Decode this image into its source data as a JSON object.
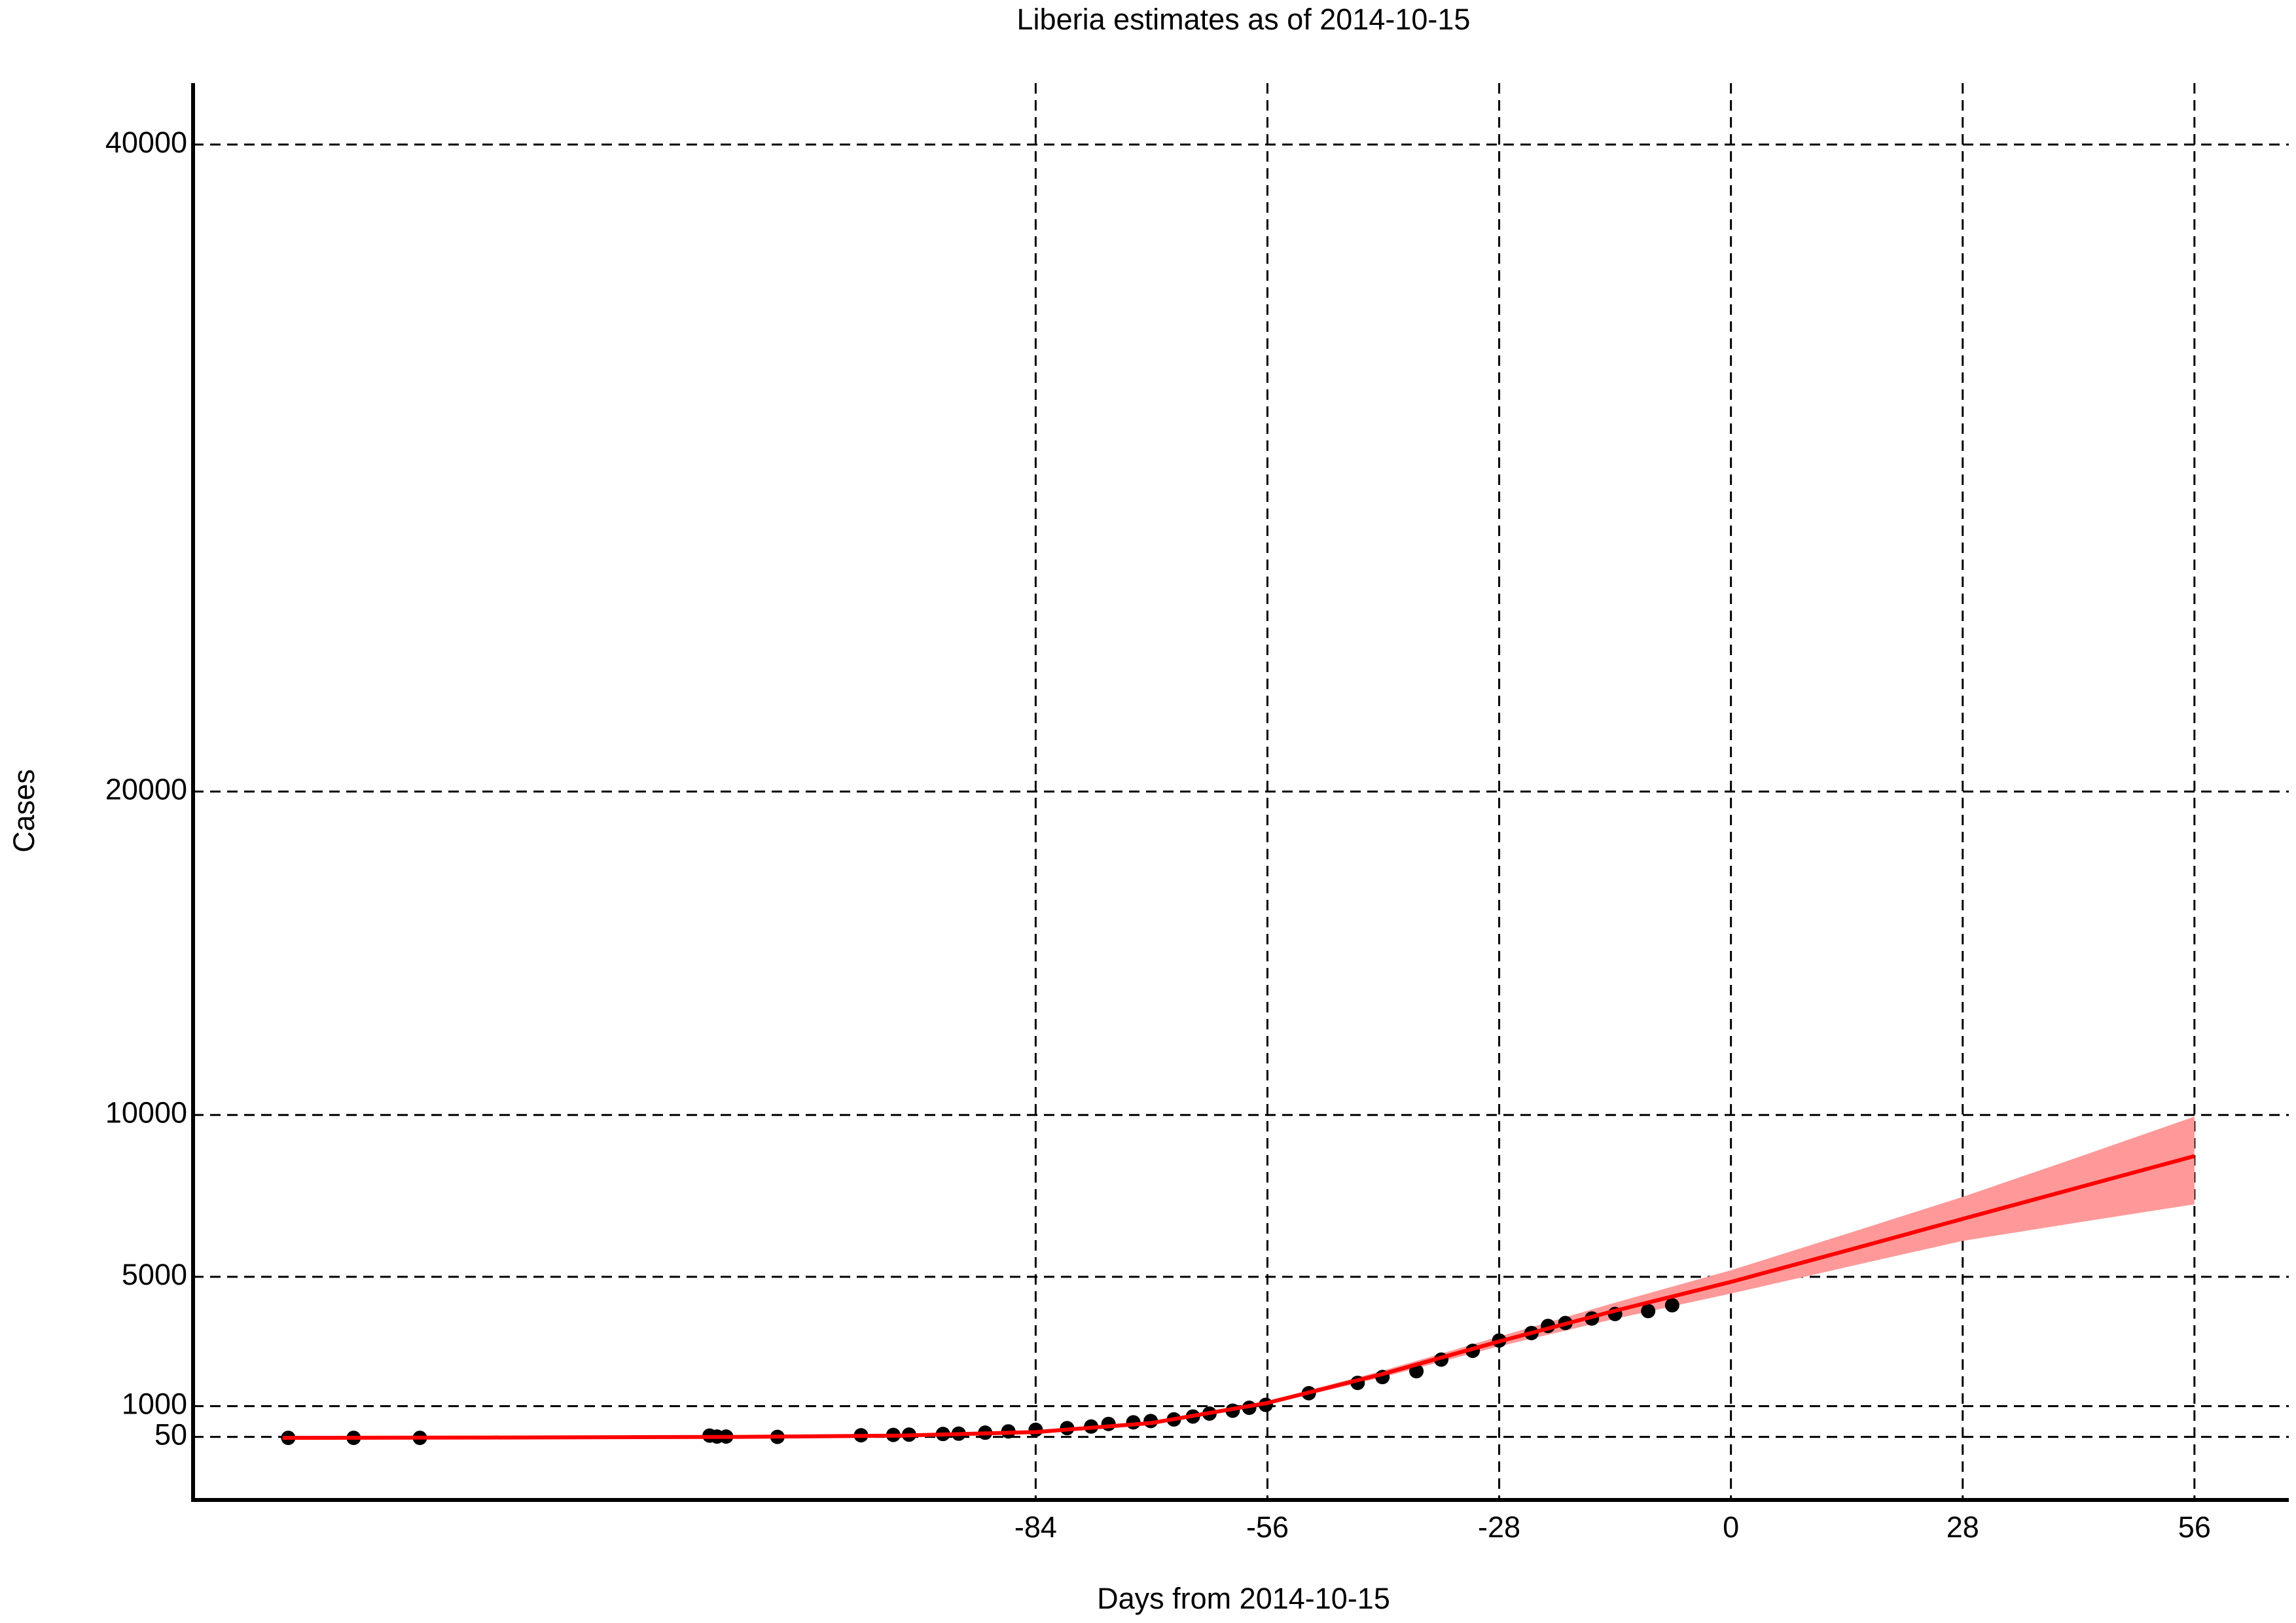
{
  "chart_data": {
    "type": "line",
    "title": "Liberia estimates as of 2014-10-15",
    "xlabel": "Days from 2014-10-15",
    "ylabel": "Cases",
    "xlim": [
      -185.8,
      67.4
    ],
    "ylim": [
      -1900,
      41900
    ],
    "xticks": [
      -84,
      -56,
      -28,
      0,
      28,
      56
    ],
    "yticks": [
      50,
      1000,
      5000,
      10000,
      20000,
      40000
    ],
    "grid": true,
    "points": {
      "color": "#000000",
      "x": [
        -174.3,
        -166.4,
        -158.4,
        -123.4,
        -122.5,
        -121.4,
        -115.2,
        -105.1,
        -101.2,
        -99.3,
        -95.2,
        -93.3,
        -90.1,
        -87.3,
        -84,
        -80.2,
        -77.3,
        -75.2,
        -72.2,
        -70.1,
        -67.3,
        -65,
        -63,
        -60.2,
        -58.2,
        -56.2,
        -51,
        -45.1,
        -42.1,
        -38,
        -35,
        -31.2,
        -28,
        -24.1,
        -22.1,
        -20,
        -16.8,
        -14,
        -10,
        -7.1
      ],
      "values": [
        20,
        20,
        20,
        90,
        60,
        60,
        50,
        100,
        110,
        120,
        140,
        150,
        180,
        220,
        270,
        320,
        370,
        450,
        500,
        540,
        590,
        680,
        770,
        860,
        950,
        1040,
        1400,
        1720,
        1900,
        2080,
        2440,
        2710,
        3030,
        3260,
        3480,
        3570,
        3710,
        3850,
        3940,
        4120
      ]
    },
    "fit": {
      "color": "#ff0000",
      "band_color": "#ff9999",
      "x": [
        -175,
        -150,
        -120,
        -100,
        -84,
        -70,
        -56,
        -42,
        -28,
        -14,
        0,
        14,
        28,
        42,
        56
      ],
      "values": [
        20,
        30,
        50,
        90,
        200,
        480,
        1100,
        2000,
        3000,
        3950,
        4840,
        5810,
        6790,
        7760,
        8730
      ],
      "lower": [
        20,
        30,
        50,
        90,
        190,
        460,
        1050,
        1900,
        2850,
        3700,
        4480,
        5300,
        6110,
        6680,
        7240
      ],
      "upper": [
        20,
        30,
        50,
        90,
        210,
        500,
        1150,
        2100,
        3150,
        4200,
        5200,
        6330,
        7470,
        8700,
        9950
      ]
    }
  }
}
